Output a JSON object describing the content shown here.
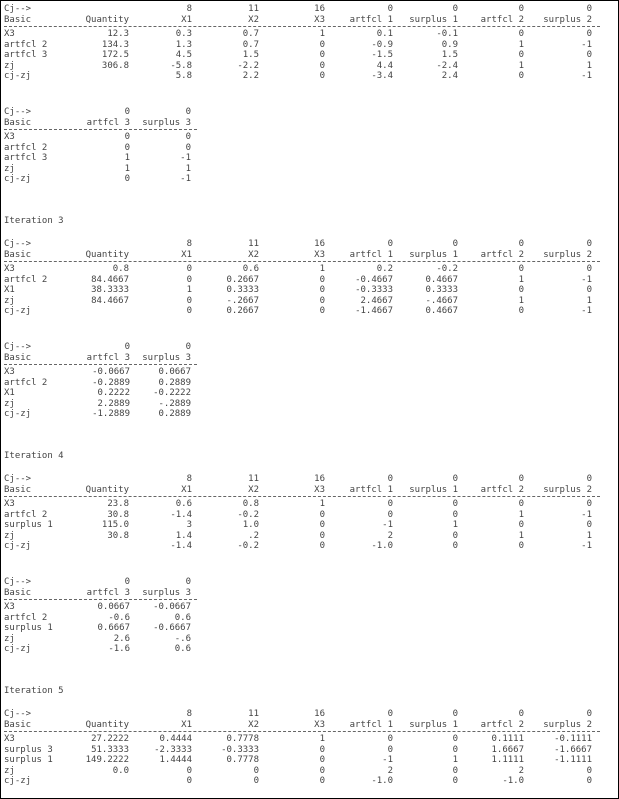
{
  "title": "",
  "blocks": [
    {
      "headers": [
        [
          "Cj-->",
          "",
          "8",
          "11",
          "16",
          "0",
          "0",
          "0",
          "0"
        ],
        [
          "Basic",
          "Quantity",
          "X1",
          "X2",
          "X3",
          "artfcl 1",
          "surplus 1",
          "artfcl 2",
          "surplus 2"
        ]
      ],
      "rows": [
        [
          "X3",
          "12.3",
          "0.3",
          "0.7",
          "1",
          "0.1",
          "-0.1",
          "0",
          "0"
        ],
        [
          "artfcl 2",
          "134.3",
          "1.3",
          "0.7",
          "0",
          "-0.9",
          "0.9",
          "1",
          "-1"
        ],
        [
          "artfcl 3",
          "172.5",
          "4.5",
          "1.5",
          "0",
          "-1.5",
          "1.5",
          "0",
          "0"
        ],
        [
          "zj",
          "306.8",
          "-5.8",
          "-2.2",
          "0",
          "4.4",
          "-2.4",
          "1",
          "1"
        ],
        [
          "cj-zj",
          "",
          "5.8",
          "2.2",
          "0",
          "-3.4",
          "2.4",
          "0",
          "-1"
        ]
      ]
    },
    {
      "headers": [
        [
          "Cj-->",
          "0",
          "0"
        ],
        [
          "Basic",
          "artfcl 3",
          "surplus 3"
        ]
      ],
      "rows": [
        [
          "X3",
          "0",
          "0"
        ],
        [
          "artfcl 2",
          "0",
          "0"
        ],
        [
          "artfcl 3",
          "1",
          "-1"
        ],
        [
          "zj",
          "1",
          "1"
        ],
        [
          "cj-zj",
          "0",
          "-1"
        ]
      ]
    },
    {
      "heading": "Iteration 3"
    },
    {
      "headers": [
        [
          "Cj-->",
          "",
          "8",
          "11",
          "16",
          "0",
          "0",
          "0",
          "0"
        ],
        [
          "Basic",
          "Quantity",
          "X1",
          "X2",
          "X3",
          "artfcl 1",
          "surplus 1",
          "artfcl 2",
          "surplus 2"
        ]
      ],
      "rows": [
        [
          "X3",
          "0.8",
          "0",
          "0.6",
          "1",
          "0.2",
          "-0.2",
          "0",
          "0"
        ],
        [
          "artfcl 2",
          "84.4667",
          "0",
          "0.2667",
          "0",
          "-0.4667",
          "0.4667",
          "1",
          "-1"
        ],
        [
          "X1",
          "38.3333",
          "1",
          "0.3333",
          "0",
          "-0.3333",
          "0.3333",
          "0",
          "0"
        ],
        [
          "zj",
          "84.4667",
          "0",
          "-.2667",
          "0",
          "2.4667",
          "-.4667",
          "1",
          "1"
        ],
        [
          "cj-zj",
          "",
          "0",
          "0.2667",
          "0",
          "-1.4667",
          "0.4667",
          "0",
          "-1"
        ]
      ]
    },
    {
      "headers": [
        [
          "Cj-->",
          "0",
          "0"
        ],
        [
          "Basic",
          "artfcl 3",
          "surplus 3"
        ]
      ],
      "rows": [
        [
          "X3",
          "-0.0667",
          "0.0667"
        ],
        [
          "artfcl 2",
          "-0.2889",
          "0.2889"
        ],
        [
          "X1",
          "0.2222",
          "-0.2222"
        ],
        [
          "zj",
          "2.2889",
          "-.2889"
        ],
        [
          "cj-zj",
          "-1.2889",
          "0.2889"
        ]
      ]
    },
    {
      "heading": "Iteration 4"
    },
    {
      "headers": [
        [
          "Cj-->",
          "",
          "8",
          "11",
          "16",
          "0",
          "0",
          "0",
          "0"
        ],
        [
          "Basic",
          "Quantity",
          "X1",
          "X2",
          "X3",
          "artfcl 1",
          "surplus 1",
          "artfcl 2",
          "surplus 2"
        ]
      ],
      "rows": [
        [
          "X3",
          "23.8",
          "0.6",
          "0.8",
          "1",
          "0",
          "0",
          "0",
          "0"
        ],
        [
          "artfcl 2",
          "30.8",
          "-1.4",
          "-0.2",
          "0",
          "0",
          "0",
          "1",
          "-1"
        ],
        [
          "surplus 1",
          "115.0",
          "3",
          "1.0",
          "0",
          "-1",
          "1",
          "0",
          "0"
        ],
        [
          "zj",
          "30.8",
          "1.4",
          ".2",
          "0",
          "2",
          "0",
          "1",
          "1"
        ],
        [
          "cj-zj",
          "",
          "-1.4",
          "-0.2",
          "0",
          "-1.0",
          "0",
          "0",
          "-1"
        ]
      ]
    },
    {
      "headers": [
        [
          "Cj-->",
          "0",
          "0"
        ],
        [
          "Basic",
          "artfcl 3",
          "surplus 3"
        ]
      ],
      "rows": [
        [
          "X3",
          "0.0667",
          "-0.0667"
        ],
        [
          "artfcl 2",
          "-0.6",
          "0.6"
        ],
        [
          "surplus 1",
          "0.6667",
          "-0.6667"
        ],
        [
          "zj",
          "2.6",
          "-.6"
        ],
        [
          "cj-zj",
          "-1.6",
          "0.6"
        ]
      ]
    },
    {
      "heading": "Iteration 5"
    },
    {
      "headers": [
        [
          "Cj-->",
          "",
          "8",
          "11",
          "16",
          "0",
          "0",
          "0",
          "0"
        ],
        [
          "Basic",
          "Quantity",
          "X1",
          "X2",
          "X3",
          "artfcl 1",
          "surplus 1",
          "artfcl 2",
          "surplus 2"
        ]
      ],
      "rows": [
        [
          "X3",
          "27.2222",
          "0.4444",
          "0.7778",
          "1",
          "0",
          "0",
          "0.1111",
          "-0.1111"
        ],
        [
          "surplus 3",
          "51.3333",
          "-2.3333",
          "-0.3333",
          "0",
          "0",
          "0",
          "1.6667",
          "-1.6667"
        ],
        [
          "surplus 1",
          "149.2222",
          "1.4444",
          "0.7778",
          "0",
          "-1",
          "1",
          "1.1111",
          "-1.1111"
        ],
        [
          "zj",
          "0.0",
          "0",
          "0",
          "0",
          "2",
          "0",
          "2",
          "0"
        ],
        [
          "cj-zj",
          "",
          "0",
          "0",
          "0",
          "-1.0",
          "0",
          "-1.0",
          "0"
        ]
      ]
    }
  ]
}
